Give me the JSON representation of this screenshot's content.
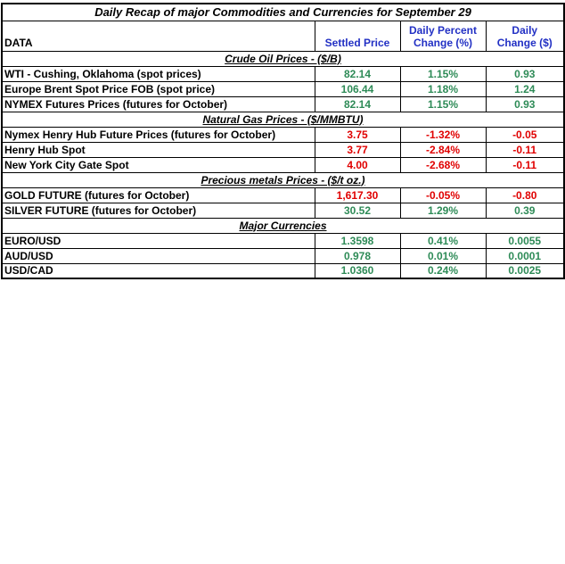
{
  "chart_data": {
    "type": "table",
    "title": "Daily Recap of major Commodities and Currencies for September 29",
    "columns": [
      "DATA",
      "Settled Price",
      "Daily Percent Change (%)",
      "Daily Change ($)"
    ],
    "sections": [
      {
        "heading": "Crude Oil Prices - ($/B)",
        "rows": [
          {
            "label": "WTI - Cushing, Oklahoma (spot prices)",
            "settled": "82.14",
            "percent": "1.15%",
            "change": "0.93",
            "trend": "up"
          },
          {
            "label": "Europe Brent Spot Price FOB (spot price)",
            "settled": "106.44",
            "percent": "1.18%",
            "change": "1.24",
            "trend": "up"
          },
          {
            "label": "NYMEX Futures Prices (futures for October)",
            "settled": "82.14",
            "percent": "1.15%",
            "change": "0.93",
            "trend": "up"
          }
        ]
      },
      {
        "heading": "Natural Gas Prices -  ($/MMBTU)",
        "rows": [
          {
            "label": "Nymex Henry Hub Future Prices (futures for October)",
            "settled": "3.75",
            "percent": "-1.32%",
            "change": "-0.05",
            "trend": "down"
          },
          {
            "label": "Henry Hub Spot",
            "settled": "3.77",
            "percent": "-2.84%",
            "change": "-0.11",
            "trend": "down"
          },
          {
            "label": "New York City Gate Spot",
            "settled": "4.00",
            "percent": "-2.68%",
            "change": "-0.11",
            "trend": "down"
          }
        ]
      },
      {
        "heading": "Precious metals Prices -  ($/t oz.)",
        "rows": [
          {
            "label": "GOLD FUTURE (futures for October)",
            "settled": "1,617.30",
            "percent": "-0.05%",
            "change": "-0.80",
            "trend": "down"
          },
          {
            "label": "SILVER FUTURE (futures for October)",
            "settled": "30.52",
            "percent": "1.29%",
            "change": "0.39",
            "trend": "up"
          }
        ]
      },
      {
        "heading": "Major Currencies",
        "rows": [
          {
            "label": "EURO/USD",
            "settled": "1.3598",
            "percent": "0.41%",
            "change": "0.0055",
            "trend": "up"
          },
          {
            "label": "AUD/USD",
            "settled": "0.978",
            "percent": "0.01%",
            "change": "0.0001",
            "trend": "up"
          },
          {
            "label": "USD/CAD",
            "settled": "1.0360",
            "percent": "0.24%",
            "change": "0.0025",
            "trend": "up"
          }
        ]
      }
    ],
    "colors": {
      "positive": "#2e8b57",
      "negative": "#e00000",
      "header_blue": "#2230c4",
      "border": "#000000"
    }
  }
}
